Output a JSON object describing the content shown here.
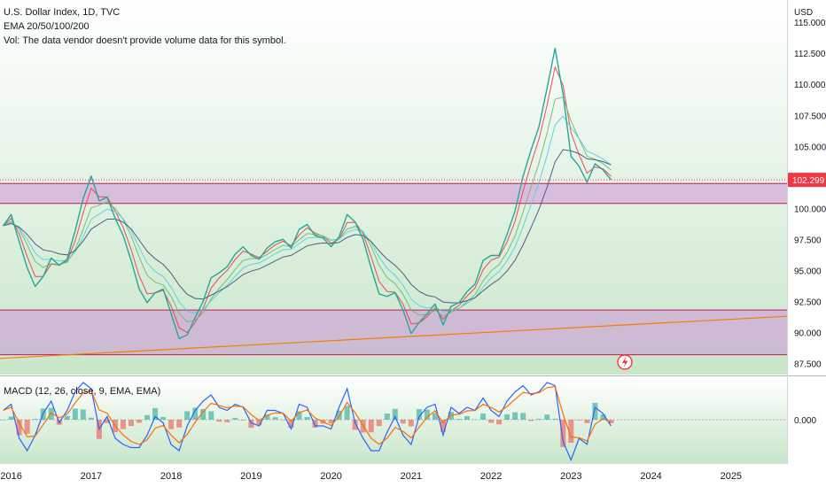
{
  "legend": {
    "symbol_line": "U.S. Dollar Index, 1D, TVC",
    "ema_line": "EMA 20/50/100/200",
    "vol_line": "Vol: The data vendor doesn't provide volume data for this symbol."
  },
  "price_axis": {
    "currency": "USD",
    "ticks": [
      {
        "value": 115.0,
        "label": "115.000"
      },
      {
        "value": 112.5,
        "label": "112.500"
      },
      {
        "value": 110.0,
        "label": "110.000"
      },
      {
        "value": 107.5,
        "label": "107.500"
      },
      {
        "value": 105.0,
        "label": "105.000"
      },
      {
        "value": 100.0,
        "label": "100.000"
      },
      {
        "value": 97.5,
        "label": "97.500"
      },
      {
        "value": 95.0,
        "label": "95.000"
      },
      {
        "value": 92.5,
        "label": "92.500"
      },
      {
        "value": 90.0,
        "label": "90.000"
      },
      {
        "value": 87.5,
        "label": "87.500"
      }
    ],
    "last_price": {
      "value": 102.299,
      "label": "102.299",
      "color": "#f23645"
    }
  },
  "macd": {
    "title": "MACD (12, 26, close, 9, EMA, EMA)",
    "zero_label": "0.000",
    "macd_color": "#2962ff",
    "signal_color": "#ff6d00"
  },
  "time_axis": {
    "ticks": [
      "2016",
      "2017",
      "2018",
      "2019",
      "2020",
      "2021",
      "2022",
      "2023",
      "2024",
      "2025"
    ]
  },
  "chart_data": {
    "type": "line",
    "range_x": [
      2015.86,
      2025.7
    ],
    "ylim": [
      86.6,
      116.8
    ],
    "zones": [
      {
        "name": "resistance",
        "y1": 100.4,
        "y2": 102.0,
        "fill": "#ce93d8"
      },
      {
        "name": "support",
        "y1": 88.2,
        "y2": 91.8,
        "fill": "#ce93d8"
      }
    ],
    "trendline": {
      "from": [
        2015.86,
        87.9
      ],
      "to": [
        2025.7,
        91.3
      ],
      "color": "#f57c00"
    },
    "price": {
      "x": [
        2015.9,
        2016.0,
        2016.1,
        2016.2,
        2016.3,
        2016.4,
        2016.5,
        2016.6,
        2016.7,
        2016.8,
        2016.9,
        2017.0,
        2017.1,
        2017.2,
        2017.3,
        2017.4,
        2017.5,
        2017.6,
        2017.7,
        2017.8,
        2017.9,
        2018.0,
        2018.1,
        2018.2,
        2018.3,
        2018.4,
        2018.5,
        2018.6,
        2018.7,
        2018.8,
        2018.9,
        2019.0,
        2019.1,
        2019.2,
        2019.3,
        2019.4,
        2019.5,
        2019.6,
        2019.7,
        2019.8,
        2019.9,
        2020.0,
        2020.1,
        2020.2,
        2020.3,
        2020.4,
        2020.5,
        2020.6,
        2020.7,
        2020.8,
        2020.9,
        2021.0,
        2021.1,
        2021.2,
        2021.3,
        2021.4,
        2021.5,
        2021.6,
        2021.7,
        2021.8,
        2021.9,
        2022.0,
        2022.1,
        2022.2,
        2022.3,
        2022.4,
        2022.5,
        2022.6,
        2022.7,
        2022.8,
        2022.9,
        2023.0,
        2023.1,
        2023.2,
        2023.3,
        2023.4,
        2023.5
      ],
      "y": [
        98.6,
        99.5,
        97.3,
        95.2,
        93.7,
        94.5,
        96.0,
        95.4,
        95.9,
        98.2,
        100.8,
        102.6,
        100.6,
        100.9,
        99.2,
        97.8,
        95.8,
        93.5,
        92.4,
        93.2,
        93.5,
        91.5,
        89.5,
        89.8,
        91.2,
        92.5,
        94.4,
        94.8,
        95.3,
        96.3,
        96.9,
        96.2,
        95.9,
        96.8,
        97.3,
        97.5,
        96.8,
        98.3,
        98.7,
        97.8,
        97.6,
        96.9,
        97.7,
        99.5,
        98.9,
        97.5,
        95.2,
        93.1,
        92.9,
        93.2,
        91.8,
        89.9,
        90.8,
        91.5,
        92.3,
        90.6,
        92.1,
        92.4,
        93.3,
        93.9,
        95.8,
        96.2,
        96.2,
        97.9,
        99.8,
        102.6,
        104.7,
        106.6,
        109.7,
        112.9,
        109.2,
        104.2,
        103.4,
        102.1,
        103.6,
        103.1,
        102.3
      ]
    },
    "macd_series": {
      "x": [
        2015.9,
        2016.0,
        2016.1,
        2016.2,
        2016.3,
        2016.4,
        2016.5,
        2016.6,
        2016.7,
        2016.8,
        2016.9,
        2017.0,
        2017.1,
        2017.2,
        2017.3,
        2017.4,
        2017.5,
        2017.6,
        2017.7,
        2017.8,
        2017.9,
        2018.0,
        2018.1,
        2018.2,
        2018.3,
        2018.4,
        2018.5,
        2018.6,
        2018.7,
        2018.8,
        2018.9,
        2019.0,
        2019.1,
        2019.2,
        2019.3,
        2019.4,
        2019.5,
        2019.6,
        2019.7,
        2019.8,
        2019.9,
        2020.0,
        2020.1,
        2020.2,
        2020.3,
        2020.4,
        2020.5,
        2020.6,
        2020.7,
        2020.8,
        2020.9,
        2021.0,
        2021.1,
        2021.2,
        2021.3,
        2021.4,
        2021.5,
        2021.6,
        2021.7,
        2021.8,
        2021.9,
        2022.0,
        2022.1,
        2022.2,
        2022.3,
        2022.4,
        2022.5,
        2022.6,
        2022.7,
        2022.8,
        2022.9,
        2023.0,
        2023.1,
        2023.2,
        2023.3,
        2023.4,
        2023.5
      ],
      "macd": [
        0.3,
        0.5,
        -0.6,
        -1.0,
        -0.5,
        0.2,
        0.6,
        -0.1,
        0.3,
        0.9,
        1.2,
        1.0,
        -0.3,
        0.1,
        -0.6,
        -0.8,
        -0.9,
        -0.9,
        -0.5,
        0.1,
        -0.1,
        -0.8,
        -1.0,
        -0.2,
        0.3,
        0.6,
        0.8,
        0.4,
        0.3,
        0.5,
        0.4,
        -0.1,
        -0.2,
        0.3,
        0.3,
        0.2,
        -0.3,
        0.5,
        0.4,
        -0.2,
        -0.2,
        -0.3,
        0.4,
        1.0,
        -0.1,
        -0.6,
        -1.0,
        -1.0,
        -0.4,
        0.1,
        -0.5,
        -0.8,
        0.1,
        0.4,
        0.5,
        -0.5,
        0.4,
        0.2,
        0.4,
        0.3,
        0.7,
        0.3,
        0.1,
        0.6,
        0.9,
        1.1,
        0.8,
        0.9,
        1.2,
        1.1,
        -0.7,
        -1.3,
        -0.6,
        -0.8,
        0.4,
        0.2,
        -0.2
      ]
    }
  }
}
